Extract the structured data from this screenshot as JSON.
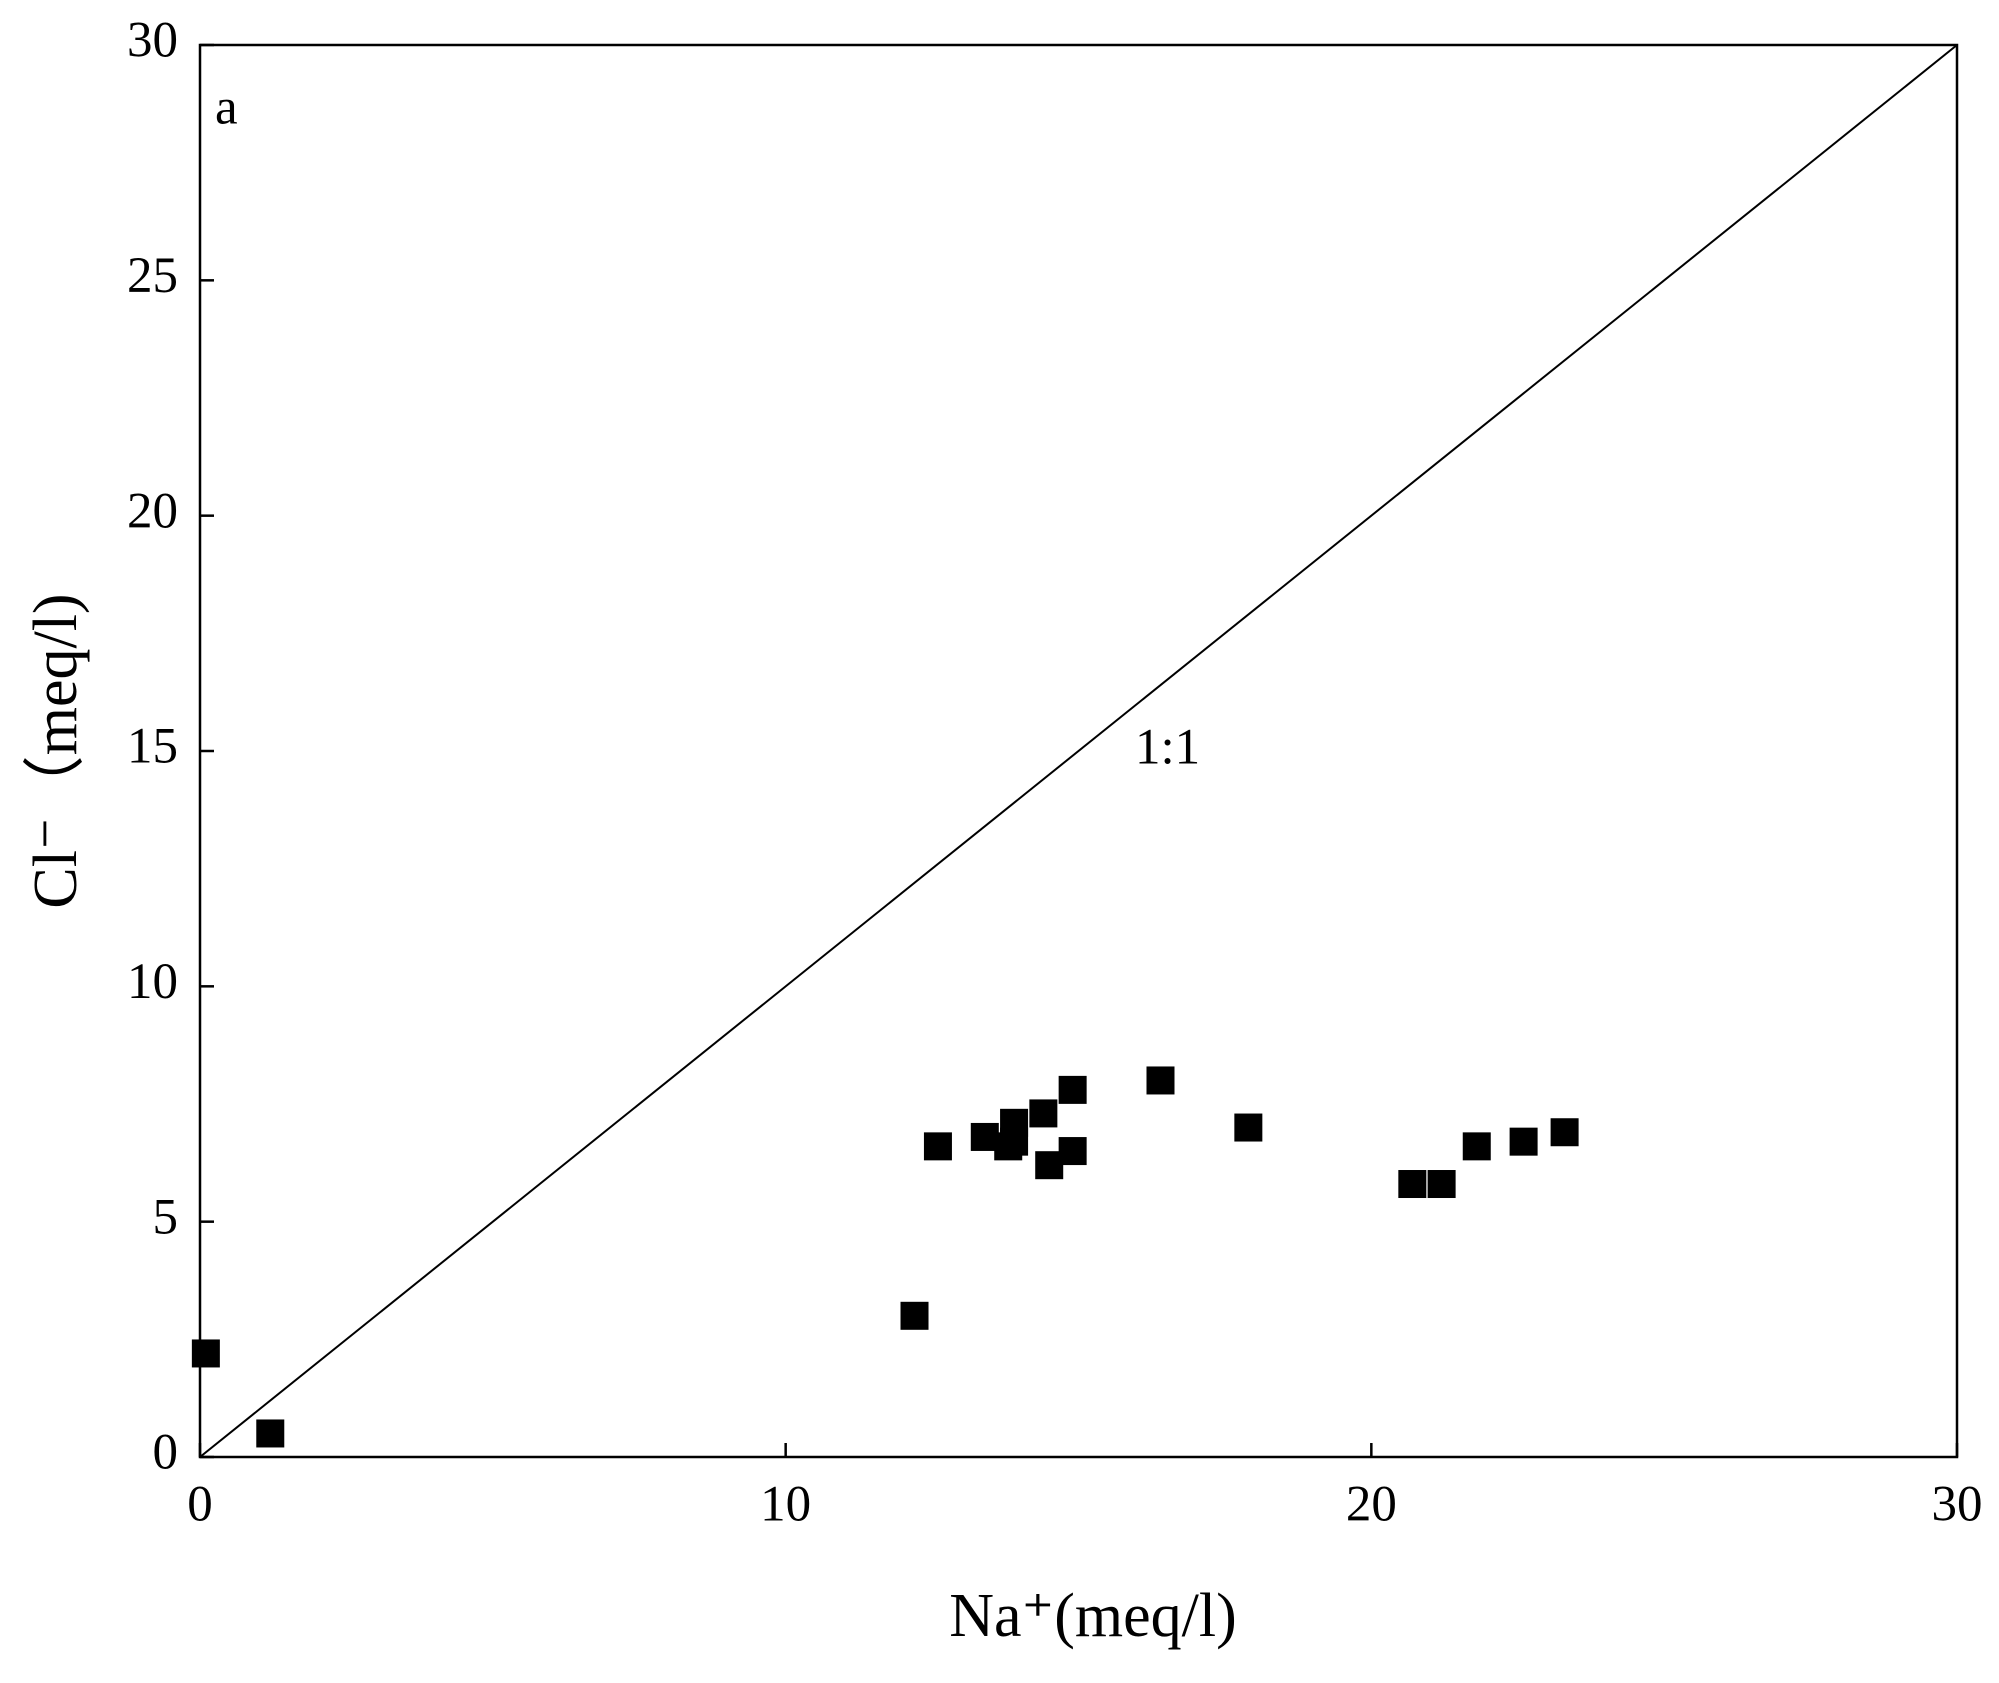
{
  "chart_data": {
    "type": "scatter",
    "annotations": [
      "a",
      "1:1"
    ],
    "xlabel": "Na⁺(meq/l)",
    "ylabel": "Cl⁻（meq/l)",
    "x": [
      0.1,
      1.2,
      12.2,
      12.6,
      13.4,
      13.9,
      13.8,
      13.9,
      14.4,
      14.5,
      14.9,
      14.9,
      16.4,
      17.9,
      20.7,
      21.2,
      21.8,
      22.6,
      23.3
    ],
    "y": [
      2.2,
      0.5,
      3.0,
      6.6,
      6.8,
      7.1,
      6.6,
      6.7,
      7.3,
      6.2,
      7.8,
      6.5,
      8.0,
      7.0,
      5.8,
      5.8,
      6.6,
      6.7,
      6.9
    ],
    "color": "#000000",
    "xlim": [
      0,
      30
    ],
    "ylim": [
      0,
      30
    ],
    "xticks": [
      0,
      10,
      20,
      30
    ],
    "yticks": [
      0,
      5,
      10,
      15,
      20,
      25,
      30
    ],
    "grid": false
  }
}
